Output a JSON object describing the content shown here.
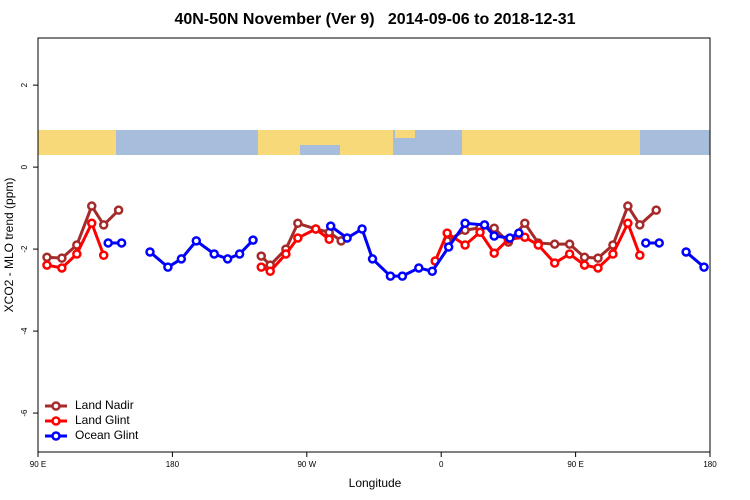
{
  "chart_data": {
    "type": "line",
    "title": "40N-50N November (Ver 9)   2014-09-06 to 2018-12-31",
    "xlabel": "Longitude",
    "ylabel": "XCO2 - MLO trend (ppm)",
    "xlim": [
      -270,
      180
    ],
    "xticks": [
      {
        "value": -270,
        "label": "90 E"
      },
      {
        "value": -180,
        "label": "180"
      },
      {
        "value": -90,
        "label": "90 W"
      },
      0,
      {
        "value": 90,
        "label": "90 E"
      },
      {
        "value": 180,
        "label": "180"
      }
    ],
    "ylim": [
      -6.95,
      3.15
    ],
    "yticks": [
      -6,
      -4,
      -2,
      0,
      2
    ],
    "legend": "bottom-left",
    "series": [
      {
        "name": "Land Nadir",
        "color": "#a52a2a",
        "x": [
          -264,
          -254,
          -244,
          -234,
          -226,
          -216,
          null,
          -120.5,
          -114.5,
          -104,
          -96,
          -84,
          -75,
          -67,
          null,
          4,
          16,
          26,
          35.5,
          45,
          56,
          65,
          76,
          86,
          96,
          105,
          115,
          125,
          133,
          144
        ],
        "values": [
          -2.2,
          -2.22,
          -1.9,
          -0.95,
          -1.41,
          -1.05,
          null,
          -2.17,
          -2.39,
          -2.0,
          -1.37,
          -1.51,
          -1.59,
          -1.8,
          null,
          -1.8,
          -1.54,
          -1.48,
          -1.49,
          -1.83,
          -1.37,
          -1.85,
          -1.88,
          -1.88,
          -2.2,
          -2.22,
          -1.9,
          -0.95,
          -1.41,
          -1.05
        ]
      },
      {
        "name": "Land Glint",
        "color": "#ff0000",
        "x": [
          -264,
          -254,
          -244,
          -234,
          -226,
          null,
          -120.5,
          -114.5,
          -104,
          -96,
          -84,
          -75,
          null,
          -4,
          4,
          16,
          26,
          35.5,
          45,
          56,
          65,
          76,
          86,
          96,
          105,
          115,
          125,
          133
        ],
        "values": [
          -2.39,
          -2.46,
          -2.12,
          -1.37,
          -2.15,
          null,
          -2.44,
          -2.54,
          -2.12,
          -1.73,
          -1.51,
          -1.76,
          null,
          -2.29,
          -1.61,
          -1.9,
          -1.59,
          -2.1,
          -1.76,
          -1.71,
          -1.9,
          -2.34,
          -2.12,
          -2.39,
          -2.46,
          -2.12,
          -1.37,
          -2.15
        ]
      },
      {
        "name": "Ocean Glint",
        "color": "#0000ff",
        "x": [
          -223,
          -214,
          null,
          -195,
          -183,
          -174,
          -164,
          -152,
          -143,
          -135,
          -126,
          null,
          -74,
          -63,
          -53,
          -46,
          -34,
          -26,
          -15,
          -6,
          5,
          16,
          29,
          35.5,
          46,
          52,
          null,
          137,
          146,
          null,
          164,
          176
        ],
        "values": [
          -1.85,
          -1.85,
          null,
          -2.07,
          -2.44,
          -2.24,
          -1.8,
          -2.12,
          -2.24,
          -2.12,
          -1.78,
          null,
          -1.44,
          -1.73,
          -1.51,
          -2.24,
          -2.66,
          -2.66,
          -2.46,
          -2.54,
          -1.95,
          -1.37,
          -1.41,
          -1.68,
          -1.73,
          -1.61,
          null,
          -1.85,
          -1.85,
          null,
          -2.07,
          -2.44
        ]
      }
    ]
  }
}
